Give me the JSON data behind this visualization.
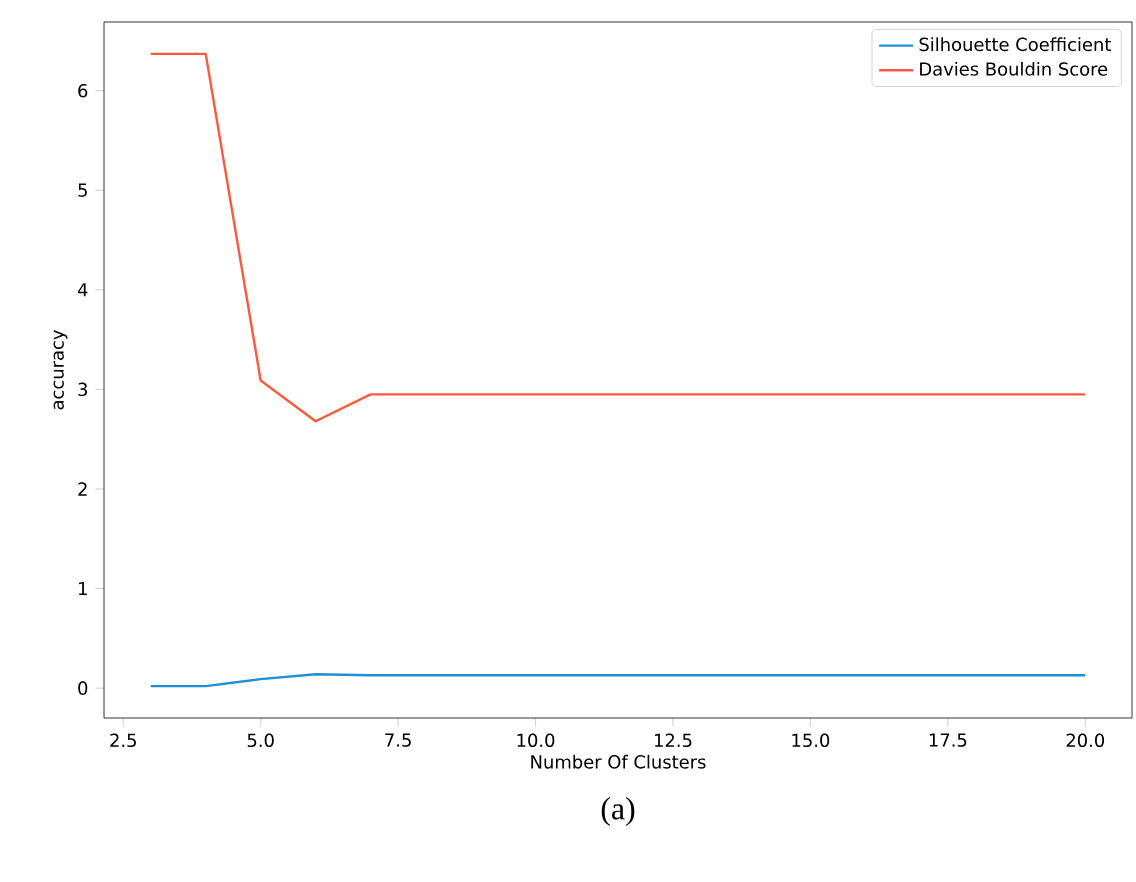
{
  "chart_data": {
    "type": "line",
    "xlabel": "Number Of Clusters",
    "ylabel": "accuracy",
    "annotations": [
      "(a)"
    ],
    "x": [
      3,
      4,
      5,
      6,
      7,
      8,
      9,
      10,
      11,
      12,
      13,
      14,
      15,
      16,
      17,
      18,
      19,
      20
    ],
    "series": [
      {
        "name": "Silhouette Coefficient",
        "color": "#1f8fd6",
        "values": [
          0.02,
          0.02,
          0.09,
          0.14,
          0.13,
          0.13,
          0.13,
          0.13,
          0.13,
          0.13,
          0.13,
          0.13,
          0.13,
          0.13,
          0.13,
          0.13,
          0.13,
          0.13
        ]
      },
      {
        "name": "Davies Bouldin Score",
        "color": "#fc5a3c",
        "values": [
          6.37,
          6.37,
          3.09,
          2.68,
          2.95,
          2.95,
          2.95,
          2.95,
          2.95,
          2.95,
          2.95,
          2.95,
          2.95,
          2.95,
          2.95,
          2.95,
          2.95,
          2.95
        ]
      }
    ],
    "xlim": [
      2.15,
      20.85
    ],
    "ylim": [
      -0.3,
      6.69
    ],
    "xticks": [
      {
        "value": 2.5,
        "label": "2.5"
      },
      {
        "value": 5,
        "label": "5.0"
      },
      {
        "value": 7.5,
        "label": "7.5"
      },
      {
        "value": 10,
        "label": "10.0"
      },
      {
        "value": 12.5,
        "label": "12.5"
      },
      {
        "value": 15,
        "label": "15.0"
      },
      {
        "value": 17.5,
        "label": "17.5"
      },
      {
        "value": 20,
        "label": "20.0"
      }
    ],
    "yticks": [
      0,
      1,
      2,
      3,
      4,
      5,
      6
    ],
    "legend": "top right",
    "grid": false,
    "marker": "none",
    "line_style": "solid"
  }
}
